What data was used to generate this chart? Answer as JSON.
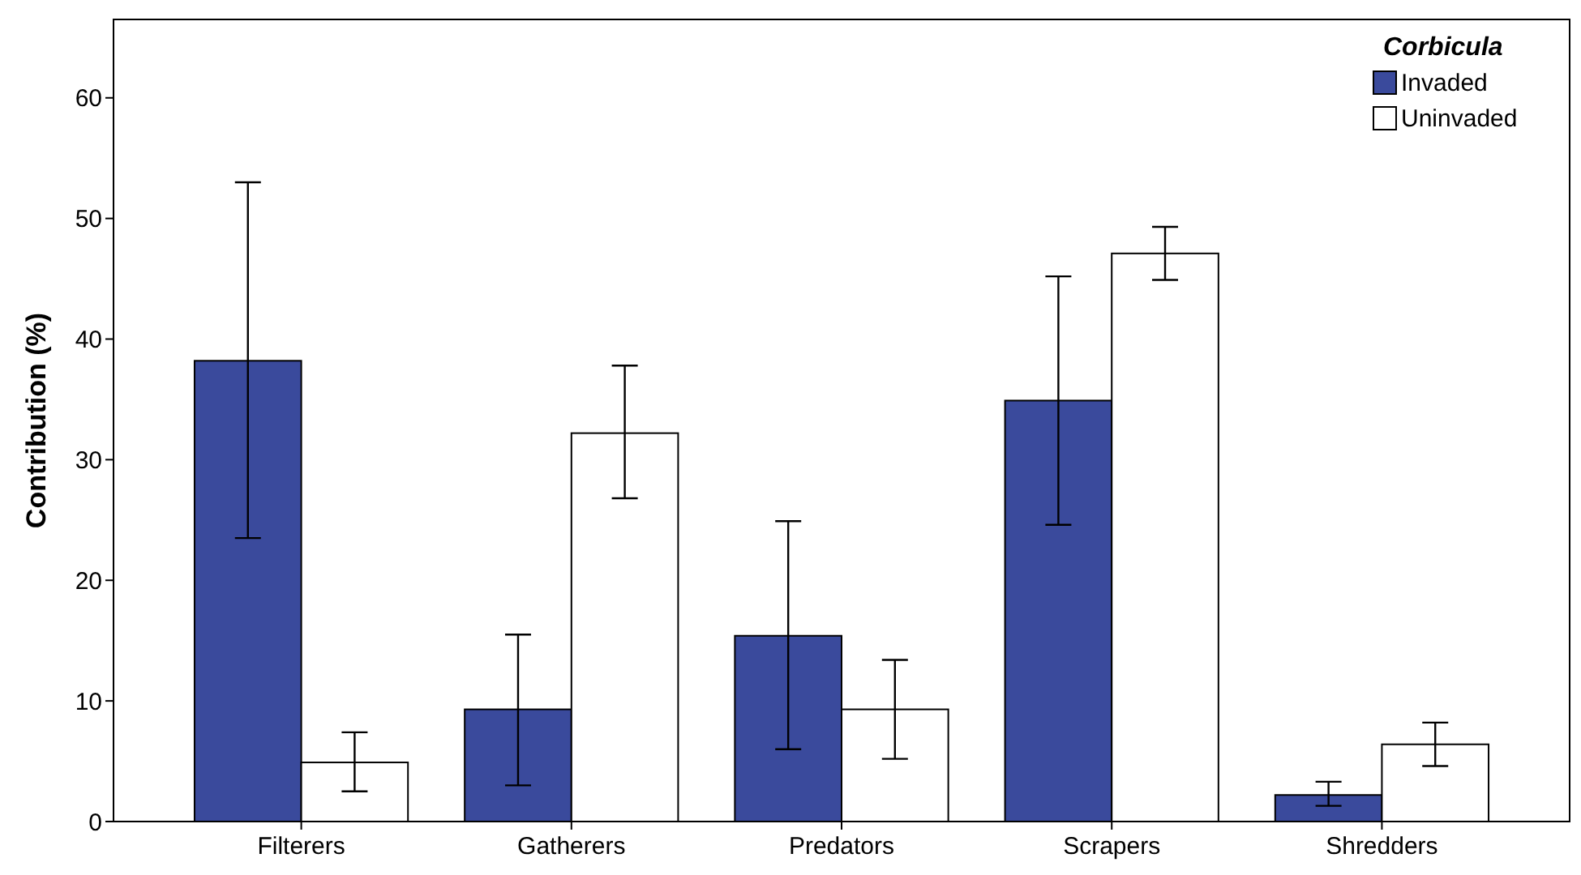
{
  "chart_data": {
    "type": "bar",
    "ylabel": "Contribution (%)",
    "legend_title": "Corbicula",
    "categories": [
      "Filterers",
      "Gatherers",
      "Predators",
      "Scrapers",
      "Shredders"
    ],
    "series": [
      {
        "name": "Invaded",
        "color": "#3a4a9c",
        "values": [
          38.2,
          9.3,
          15.4,
          34.9,
          2.2
        ],
        "errors": [
          [
            23.5,
            53.0
          ],
          [
            3.0,
            15.5
          ],
          [
            6.0,
            24.9
          ],
          [
            24.6,
            45.2
          ],
          [
            1.3,
            3.3
          ]
        ]
      },
      {
        "name": "Uninvaded",
        "color": "#ffffff",
        "values": [
          4.9,
          32.2,
          9.3,
          47.1,
          6.4
        ],
        "errors": [
          [
            2.5,
            7.4
          ],
          [
            26.8,
            37.8
          ],
          [
            5.2,
            13.4
          ],
          [
            44.9,
            49.3
          ],
          [
            4.6,
            8.2
          ]
        ]
      }
    ],
    "ylim": [
      0,
      66.5
    ],
    "yticks": [
      0,
      10,
      20,
      30,
      40,
      50,
      60
    ],
    "grid": false,
    "legend": "top right"
  }
}
